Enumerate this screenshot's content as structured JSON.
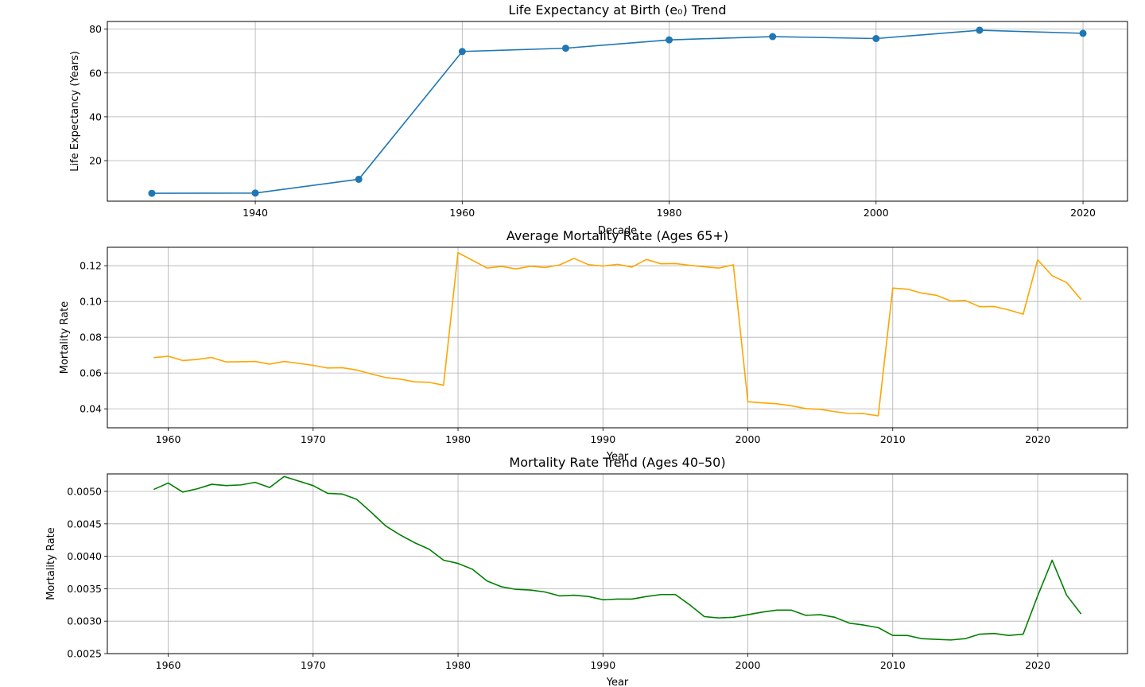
{
  "chart_data": [
    {
      "type": "line",
      "title": "Life Expectancy at Birth (e₀) Trend",
      "xlabel": "Decade",
      "ylabel": "Life Expectancy (Years)",
      "xlim": [
        1925.7,
        2024.3
      ],
      "ylim": [
        1.5,
        83.5
      ],
      "xticks": [
        1940,
        1960,
        1980,
        2000,
        2020
      ],
      "yticks": [
        20,
        40,
        60,
        80
      ],
      "ytick_decimals": 0,
      "grid": true,
      "color": "#1f77b4",
      "markers": true,
      "series": [
        {
          "x": [
            1930,
            1940,
            1950,
            1960,
            1970,
            1980,
            1990,
            2000,
            2010,
            2020
          ],
          "y": [
            5.1,
            5.2,
            11.5,
            69.8,
            71.3,
            75.1,
            76.6,
            75.7,
            79.5,
            78.1
          ]
        }
      ]
    },
    {
      "type": "line",
      "title": "Average Mortality Rate (Ages 65+)",
      "xlabel": "Year",
      "ylabel": "Mortality Rate",
      "xlim": [
        1955.8,
        2026.2
      ],
      "ylim": [
        0.0294,
        0.1303
      ],
      "xticks": [
        1960,
        1970,
        1980,
        1990,
        2000,
        2010,
        2020
      ],
      "yticks": [
        0.04,
        0.06,
        0.08,
        0.1,
        0.12
      ],
      "ytick_decimals": 2,
      "grid": true,
      "color": "#ffa500",
      "markers": false,
      "series": [
        {
          "x": [
            1959,
            1960,
            1961,
            1962,
            1963,
            1964,
            1965,
            1966,
            1967,
            1968,
            1969,
            1970,
            1971,
            1972,
            1973,
            1974,
            1975,
            1976,
            1977,
            1978,
            1979,
            1980,
            1981,
            1982,
            1983,
            1984,
            1985,
            1986,
            1987,
            1988,
            1989,
            1990,
            1991,
            1992,
            1993,
            1994,
            1995,
            1996,
            1997,
            1998,
            1999,
            2000,
            2001,
            2002,
            2003,
            2004,
            2005,
            2006,
            2007,
            2008,
            2009,
            2010,
            2011,
            2012,
            2013,
            2014,
            2015,
            2016,
            2017,
            2018,
            2019,
            2020,
            2021,
            2022,
            2023
          ],
          "y": [
            0.0686,
            0.0694,
            0.067,
            0.0676,
            0.0687,
            0.0662,
            0.0663,
            0.0665,
            0.065,
            0.0665,
            0.0654,
            0.0643,
            0.0628,
            0.063,
            0.0617,
            0.0595,
            0.0575,
            0.0566,
            0.0551,
            0.0548,
            0.0532,
            0.1273,
            0.123,
            0.1187,
            0.1196,
            0.1182,
            0.1197,
            0.119,
            0.1204,
            0.1241,
            0.1206,
            0.1198,
            0.1208,
            0.1192,
            0.1235,
            0.1211,
            0.1212,
            0.1202,
            0.1194,
            0.1187,
            0.1205,
            0.044,
            0.0433,
            0.0428,
            0.0417,
            0.0401,
            0.0397,
            0.0384,
            0.0374,
            0.0373,
            0.0361,
            0.1075,
            0.1069,
            0.1047,
            0.1035,
            0.1003,
            0.1006,
            0.0971,
            0.0972,
            0.0953,
            0.0929,
            0.1233,
            0.1144,
            0.1106,
            0.101
          ]
        }
      ]
    },
    {
      "type": "line",
      "title": "Mortality Rate Trend (Ages 40–50)",
      "xlabel": "Year",
      "ylabel": "Mortality Rate",
      "xlim": [
        1955.8,
        2026.2
      ],
      "ylim": [
        0.0025,
        0.00527
      ],
      "xticks": [
        1960,
        1970,
        1980,
        1990,
        2000,
        2010,
        2020
      ],
      "yticks": [
        0.0025,
        0.003,
        0.0035,
        0.004,
        0.0045,
        0.005
      ],
      "ytick_decimals": 4,
      "grid": true,
      "color": "#008000",
      "markers": false,
      "series": [
        {
          "x": [
            1959,
            1960,
            1961,
            1962,
            1963,
            1964,
            1965,
            1966,
            1967,
            1968,
            1969,
            1970,
            1971,
            1972,
            1973,
            1974,
            1975,
            1976,
            1977,
            1978,
            1979,
            1980,
            1981,
            1982,
            1983,
            1984,
            1985,
            1986,
            1987,
            1988,
            1989,
            1990,
            1991,
            1992,
            1993,
            1994,
            1995,
            1996,
            1997,
            1998,
            1999,
            2000,
            2001,
            2002,
            2003,
            2004,
            2005,
            2006,
            2007,
            2008,
            2009,
            2010,
            2011,
            2012,
            2013,
            2014,
            2015,
            2016,
            2017,
            2018,
            2019,
            2020,
            2021,
            2022,
            2023
          ],
          "y": [
            0.00503,
            0.00513,
            0.00499,
            0.00504,
            0.00511,
            0.00509,
            0.0051,
            0.00514,
            0.00506,
            0.00523,
            0.00516,
            0.00509,
            0.00497,
            0.00496,
            0.00488,
            0.00468,
            0.00447,
            0.00433,
            0.00421,
            0.00411,
            0.00394,
            0.00389,
            0.0038,
            0.00362,
            0.00353,
            0.00349,
            0.00348,
            0.00345,
            0.00339,
            0.0034,
            0.00338,
            0.00333,
            0.00334,
            0.00334,
            0.00338,
            0.00341,
            0.00341,
            0.00325,
            0.00307,
            0.00305,
            0.00306,
            0.0031,
            0.00314,
            0.00317,
            0.00317,
            0.00309,
            0.0031,
            0.00306,
            0.00297,
            0.00294,
            0.0029,
            0.00278,
            0.00278,
            0.00273,
            0.00272,
            0.00271,
            0.00273,
            0.0028,
            0.00281,
            0.00278,
            0.0028,
            0.00339,
            0.00394,
            0.0034,
            0.00311
          ]
        }
      ]
    }
  ]
}
